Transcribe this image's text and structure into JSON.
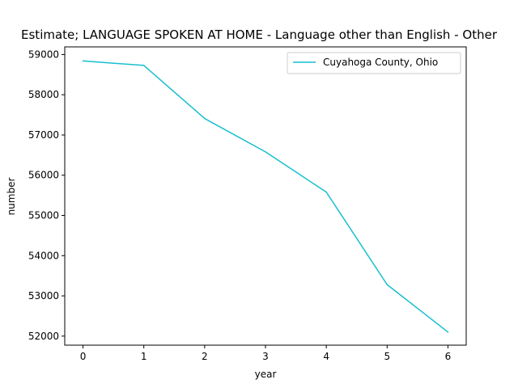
{
  "chart_data": {
    "type": "line",
    "title": "Estimate; LANGUAGE SPOKEN AT HOME - Language other than English - Other",
    "xlabel": "year",
    "ylabel": "number",
    "x": [
      0,
      1,
      2,
      3,
      4,
      5,
      6
    ],
    "xticks": [
      0,
      1,
      2,
      3,
      4,
      5,
      6
    ],
    "xlim": [
      -0.3,
      6.3
    ],
    "yticks": [
      52000,
      53000,
      54000,
      55000,
      56000,
      57000,
      58000,
      59000
    ],
    "ylim": [
      51775,
      59190
    ],
    "grid": false,
    "legend_position": "top-right",
    "series": [
      {
        "name": "Cuyahoga County, Ohio",
        "color": "#17becf",
        "values": [
          58840,
          58730,
          57410,
          56580,
          55580,
          53280,
          52100
        ]
      }
    ]
  }
}
